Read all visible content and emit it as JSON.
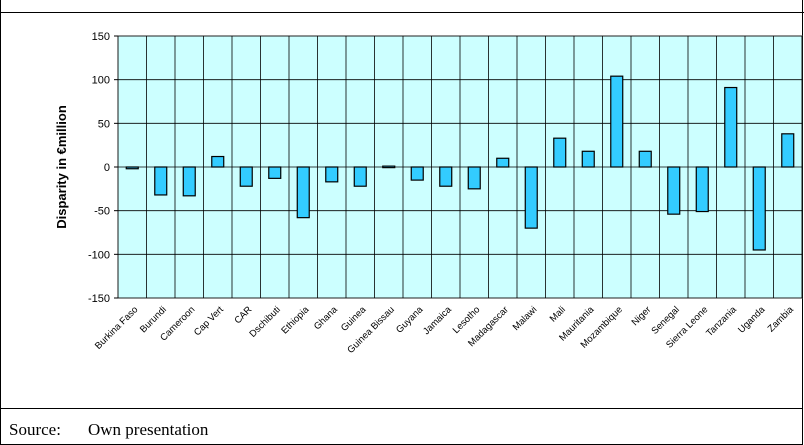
{
  "chart_data": {
    "type": "bar",
    "title": "",
    "xlabel": "",
    "ylabel": "Disparity in €million",
    "ylim": [
      -150,
      150
    ],
    "yticks": [
      150,
      100,
      50,
      0,
      -50,
      -100,
      -150
    ],
    "grid": true,
    "legend": "none",
    "colors": {
      "bar": "#33ccff",
      "plot_bg": "#ccffff",
      "grid": "#000000"
    },
    "categories": [
      "Burkina Faso",
      "Burundi",
      "Cameroon",
      "Cap Vert",
      "CAR",
      "Dschibuti",
      "Ethiopia",
      "Ghana",
      "Guinea",
      "Guinea Bissau",
      "Guyana",
      "Jamaica",
      "Lesotho",
      "Madagascar",
      "Malawi",
      "Mali",
      "Mauritania",
      "Mozambique",
      "Niger",
      "Senegal",
      "Sierra Leone",
      "Tanzania",
      "Uganda",
      "Zambia"
    ],
    "values": [
      -2,
      -32,
      -33,
      12,
      -22,
      -13,
      -58,
      -17,
      -22,
      1,
      -15,
      -22,
      -25,
      10,
      -70,
      33,
      18,
      104,
      18,
      -54,
      -51,
      91,
      -95,
      38
    ]
  },
  "source": {
    "label": "Source:",
    "value": "Own presentation"
  }
}
